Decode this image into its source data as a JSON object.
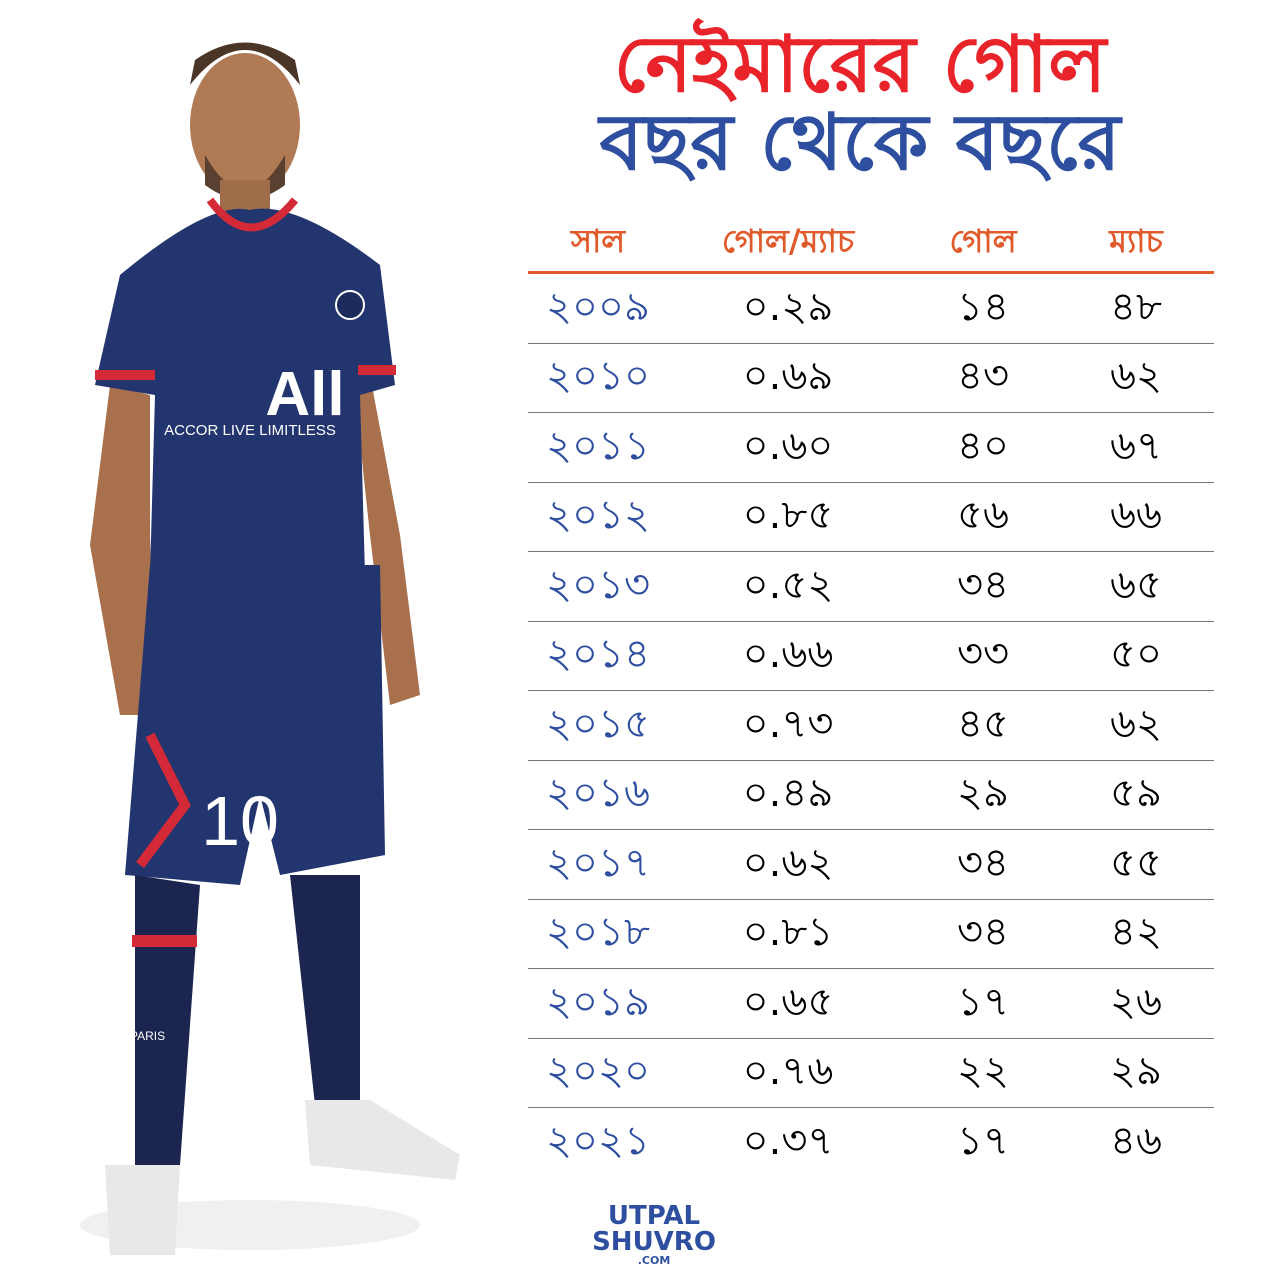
{
  "title": {
    "line1": "নেইমারের গোল",
    "line2": "বছর থেকে বছরে"
  },
  "colors": {
    "title_red": "#e8232a",
    "title_blue": "#2e4fa0",
    "header_orange": "#e05a2b",
    "year_blue": "#2e4fa0"
  },
  "chart_data": {
    "type": "table",
    "columns": [
      "সাল",
      "গোল/ম্যাচ",
      "গোল",
      "ম্যাচ"
    ],
    "rows": [
      [
        "২০০৯",
        "০.২৯",
        "১৪",
        "৪৮"
      ],
      [
        "২০১০",
        "০.৬৯",
        "৪৩",
        "৬২"
      ],
      [
        "২০১১",
        "০.৬০",
        "৪০",
        "৬৭"
      ],
      [
        "২০১২",
        "০.৮৫",
        "৫৬",
        "৬৬"
      ],
      [
        "২০১৩",
        "০.৫২",
        "৩৪",
        "৬৫"
      ],
      [
        "২০১৪",
        "০.৬৬",
        "৩৩",
        "৫০"
      ],
      [
        "২০১৫",
        "০.৭৩",
        "৪৫",
        "৬২"
      ],
      [
        "২০১৬",
        "০.৪৯",
        "২৯",
        "৫৯"
      ],
      [
        "২০১৭",
        "০.৬২",
        "৩৪",
        "৫৫"
      ],
      [
        "২০১৮",
        "০.৮১",
        "৩৪",
        "৪২"
      ],
      [
        "২০১৯",
        "০.৬৫",
        "১৭",
        "২৬"
      ],
      [
        "২০২০",
        "০.৭৬",
        "২২",
        "২৯"
      ],
      [
        "২০২১",
        "০.৩৭",
        "১৭",
        "৪৬"
      ]
    ]
  },
  "player": {
    "jersey_sponsor": "ACCOR LIVE LIMITLESS",
    "shorts_number": "10",
    "sock_text": "PARIS"
  },
  "logo": {
    "line1": "UTPAL",
    "line2": "SHUVRO",
    "line3": ".COM"
  }
}
